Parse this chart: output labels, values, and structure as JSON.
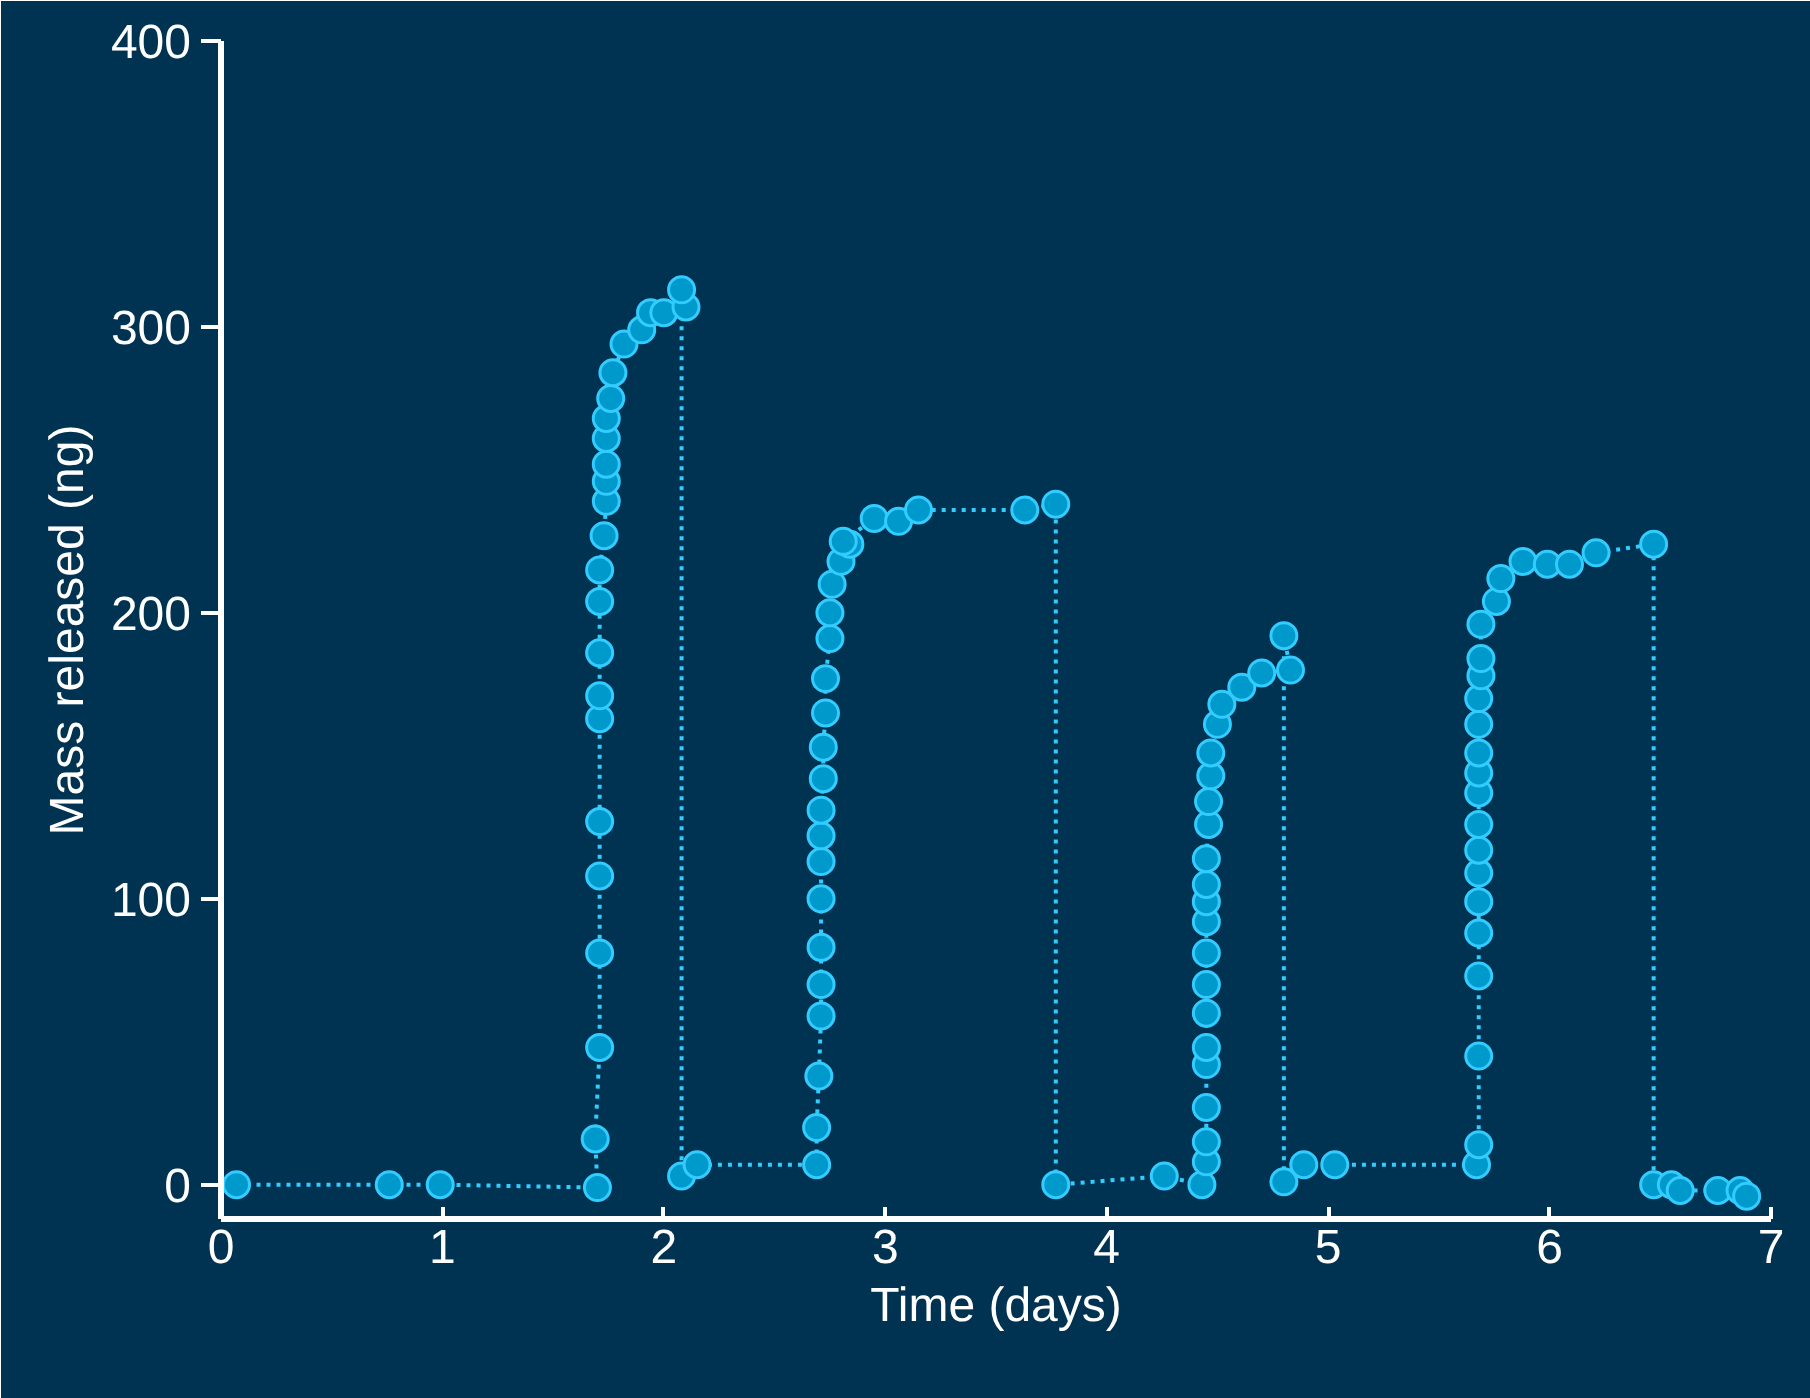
{
  "chart_data": {
    "type": "line",
    "xlabel": "Time (days)",
    "ylabel": "Mass released (ng)",
    "xlim": [
      0,
      7
    ],
    "ylim": [
      -12,
      400
    ],
    "xticks": [
      0,
      1,
      2,
      3,
      4,
      5,
      6,
      7
    ],
    "yticks": [
      0,
      100,
      200,
      300,
      400
    ],
    "grid": false,
    "marker": "circle",
    "line_style": "dotted",
    "series": [
      {
        "color": "#0099cc",
        "x": [
          0.07,
          0.76,
          0.99,
          1.7,
          1.69,
          1.71,
          1.71,
          1.71,
          1.71,
          1.71,
          1.71,
          1.71,
          1.71,
          1.71,
          1.73,
          1.74,
          1.74,
          1.74,
          1.74,
          1.74,
          1.76,
          1.77,
          1.82,
          1.9,
          1.94,
          2.0,
          2.1,
          2.08,
          2.08,
          2.15,
          2.69,
          2.69,
          2.7,
          2.71,
          2.71,
          2.71,
          2.71,
          2.71,
          2.71,
          2.71,
          2.72,
          2.72,
          2.73,
          2.73,
          2.75,
          2.75,
          2.76,
          2.8,
          2.84,
          2.81,
          2.95,
          3.06,
          3.15,
          3.63,
          3.77,
          3.77,
          4.26,
          4.43,
          4.45,
          4.45,
          4.45,
          4.45,
          4.45,
          4.45,
          4.45,
          4.45,
          4.45,
          4.45,
          4.45,
          4.45,
          4.46,
          4.46,
          4.47,
          4.47,
          4.5,
          4.52,
          4.61,
          4.7,
          4.83,
          4.8,
          4.8,
          4.89,
          5.03,
          5.67,
          5.68,
          5.68,
          5.68,
          5.68,
          5.68,
          5.68,
          5.68,
          5.68,
          5.68,
          5.68,
          5.68,
          5.68,
          5.68,
          5.69,
          5.69,
          5.69,
          5.76,
          5.78,
          5.88,
          5.99,
          6.09,
          6.21,
          6.47,
          6.47,
          6.55,
          6.59,
          6.76,
          6.86,
          6.89
        ],
        "values": [
          0,
          0,
          0,
          -1,
          16,
          48,
          81,
          108,
          127,
          163,
          171,
          186,
          204,
          215,
          227,
          239,
          246,
          252,
          261,
          268,
          275,
          284,
          294,
          299,
          305,
          305,
          307,
          313,
          3,
          7,
          7,
          20,
          38,
          59,
          70,
          83,
          100,
          113,
          122,
          131,
          142,
          153,
          165,
          177,
          191,
          200,
          210,
          218,
          224,
          225,
          233,
          232,
          236,
          236,
          238,
          0,
          3,
          0,
          8,
          15,
          27,
          42,
          48,
          60,
          70,
          81,
          92,
          99,
          105,
          114,
          126,
          134,
          143,
          151,
          161,
          168,
          174,
          179,
          180,
          192,
          1,
          7,
          7,
          7,
          14,
          45,
          73,
          88,
          99,
          109,
          117,
          126,
          137,
          144,
          151,
          161,
          170,
          178,
          184,
          196,
          204,
          212,
          218,
          217,
          217,
          221,
          224,
          0,
          0,
          -2,
          -2,
          -2,
          -4
        ]
      }
    ]
  }
}
